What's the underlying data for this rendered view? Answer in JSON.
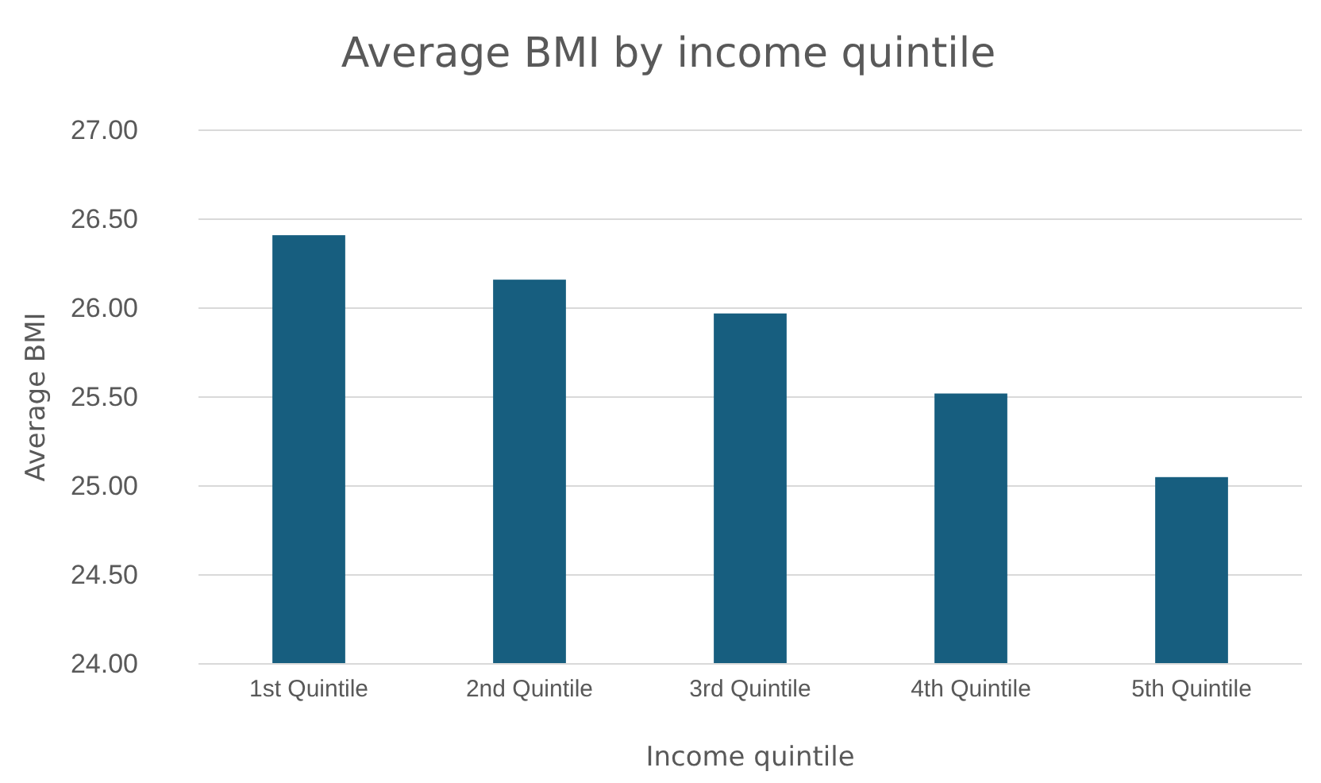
{
  "chart_data": {
    "type": "bar",
    "title": "Average BMI by income quintile",
    "xlabel": "Income quintile",
    "ylabel": "Average BMI",
    "categories": [
      "1st Quintile",
      "2nd Quintile",
      "3rd Quintile",
      "4th Quintile",
      "5th Quintile"
    ],
    "values": [
      26.41,
      26.16,
      25.97,
      25.52,
      25.05
    ],
    "color": "#175e7f",
    "ylim": [
      24,
      27
    ],
    "yticks": [
      {
        "value": 24,
        "label": "24.00"
      },
      {
        "value": 24.5,
        "label": "24.50"
      },
      {
        "value": 25,
        "label": "25.00"
      },
      {
        "value": 25.5,
        "label": "25.50"
      },
      {
        "value": 26,
        "label": "26.00"
      },
      {
        "value": 26.5,
        "label": "26.50"
      },
      {
        "value": 27,
        "label": "27.00"
      }
    ],
    "grid": "y"
  }
}
